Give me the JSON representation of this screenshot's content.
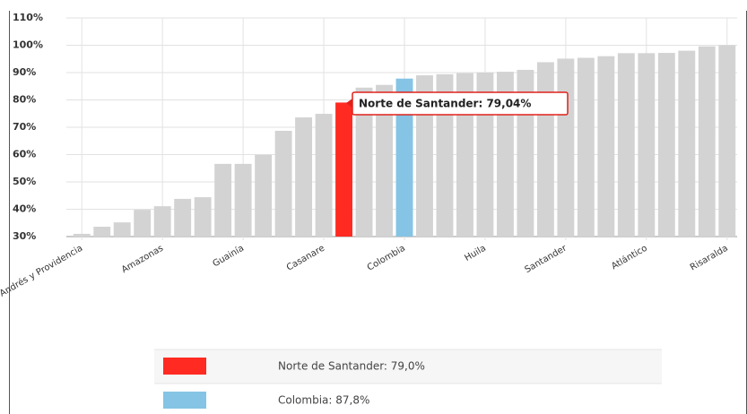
{
  "chart_data": {
    "type": "bar",
    "categories": [
      "San Andrés y Providencia",
      null,
      null,
      null,
      "Amazonas",
      null,
      null,
      null,
      "Guainía",
      null,
      null,
      null,
      "Casanare",
      null,
      null,
      null,
      "Colombia",
      null,
      null,
      null,
      "Huila",
      null,
      null,
      null,
      "Santander",
      null,
      null,
      null,
      "Atlántico",
      null,
      null,
      null,
      "Risaralda"
    ],
    "values": [
      31,
      33.6,
      35.2,
      39.8,
      41.1,
      43.8,
      44.4,
      56.6,
      56.6,
      59.9,
      68.7,
      73.6,
      74.9,
      79.04,
      84.5,
      85.5,
      87.8,
      89,
      89.4,
      89.8,
      90,
      90.3,
      91,
      93.8,
      95.1,
      95.4,
      96,
      97.1,
      97.1,
      97.2,
      98,
      99.6,
      100
    ],
    "colors": [
      "#d3d3d3",
      "#d3d3d3",
      "#d3d3d3",
      "#d3d3d3",
      "#d3d3d3",
      "#d3d3d3",
      "#d3d3d3",
      "#d3d3d3",
      "#d3d3d3",
      "#d3d3d3",
      "#d3d3d3",
      "#d3d3d3",
      "#d3d3d3",
      "#ff2a22",
      "#d3d3d3",
      "#d3d3d3",
      "#85c4e4",
      "#d3d3d3",
      "#d3d3d3",
      "#d3d3d3",
      "#d3d3d3",
      "#d3d3d3",
      "#d3d3d3",
      "#d3d3d3",
      "#d3d3d3",
      "#d3d3d3",
      "#d3d3d3",
      "#d3d3d3",
      "#d3d3d3",
      "#d3d3d3",
      "#d3d3d3",
      "#d3d3d3",
      "#d3d3d3"
    ],
    "ylim": [
      30,
      110
    ],
    "yticks": [
      {
        "value": 30,
        "label": "30%"
      },
      {
        "value": 40,
        "label": "40%"
      },
      {
        "value": 50,
        "label": "50%"
      },
      {
        "value": 60,
        "label": "60%"
      },
      {
        "value": 70,
        "label": "70%"
      },
      {
        "value": 80,
        "label": "80%"
      },
      {
        "value": 90,
        "label": "90%"
      },
      {
        "value": 100,
        "label": "100%"
      },
      {
        "value": 110,
        "label": "110%"
      }
    ],
    "grid": true,
    "tooltip": "Norte de Santander: 79,04%",
    "legend": [
      {
        "label": "Norte de Santander:  79,0%",
        "color": "#ff2a22"
      },
      {
        "label": "Colombia:  87,8%",
        "color": "#85c4e4"
      }
    ]
  }
}
